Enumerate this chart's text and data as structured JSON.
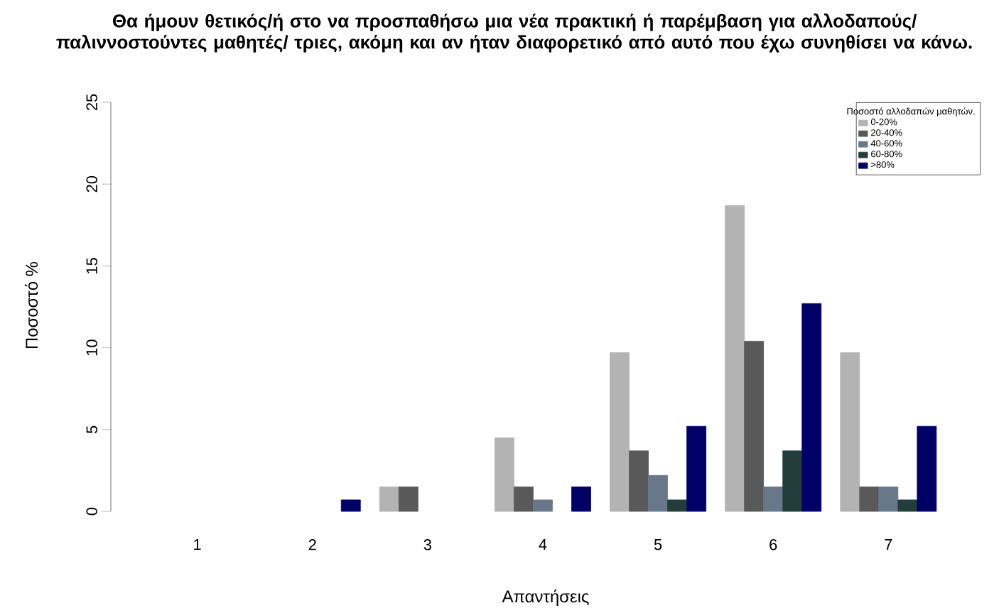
{
  "chart_data": {
    "type": "bar",
    "title": "Θα ήμουν θετικός/ή στο να προσπαθήσω μια νέα πρακτική ή παρέμβαση για αλλοδαπούς/ παλιννοστούντες μαθητές/ τριες, ακόμη και αν ήταν διαφορετικό από αυτό που έχω συνηθίσει να κάνω.",
    "xlabel": "Απαντήσεις",
    "ylabel": "Ποσοστό %",
    "legend_title": "Ποσοστό αλλοδαπών μαθητών.",
    "categories": [
      "1",
      "2",
      "3",
      "4",
      "5",
      "6",
      "7"
    ],
    "series": [
      {
        "name": "0-20%",
        "color": "#b3b3b3",
        "values": [
          null,
          null,
          1.5,
          4.5,
          9.7,
          18.7,
          9.7
        ]
      },
      {
        "name": "20-40%",
        "color": "#595959",
        "values": [
          null,
          null,
          1.5,
          1.5,
          3.7,
          10.4,
          1.5
        ]
      },
      {
        "name": "40-60%",
        "color": "#68788a",
        "values": [
          null,
          null,
          null,
          0.7,
          2.2,
          1.5,
          1.5
        ]
      },
      {
        "name": "60-80%",
        "color": "#233d3d",
        "values": [
          null,
          null,
          null,
          null,
          0.7,
          3.7,
          0.7
        ]
      },
      {
        "name": ">80%",
        "color": "#000066",
        "values": [
          null,
          0.7,
          null,
          1.5,
          5.2,
          12.7,
          5.2
        ]
      }
    ],
    "ylim": [
      0,
      25
    ],
    "yticks": [
      0,
      5,
      10,
      15,
      20,
      25
    ],
    "legend": "top right"
  }
}
